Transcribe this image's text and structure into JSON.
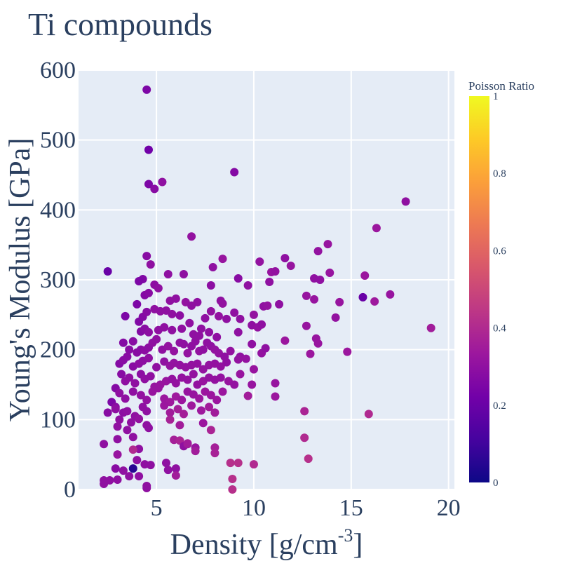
{
  "chart_data": {
    "type": "scatter",
    "title": "Ti compounds",
    "xlabel": "Density [g/cm",
    "xlabel_sup": "-3",
    "xlabel_end": "]",
    "ylabel": "Young's Modulus [GPa]",
    "xlim": [
      1,
      20.3
    ],
    "ylim": [
      0,
      600
    ],
    "xticks": [
      5,
      10,
      15,
      20
    ],
    "yticks": [
      0,
      100,
      200,
      300,
      400,
      500,
      600
    ],
    "grid": true,
    "colorbar": {
      "title": "Poisson Ratio",
      "range": [
        0,
        1
      ],
      "ticks": [
        0,
        0.2,
        0.4,
        0.6,
        0.8,
        1
      ],
      "tick_labels": [
        "0",
        "0.2",
        "0.4",
        "0.6",
        "0.8",
        "1"
      ]
    },
    "colors": {
      "plot_bg": "#e5ecf6",
      "grid": "#ffffff",
      "text": "#2a3f5f",
      "colorscale": [
        "#0d0887",
        "#46039f",
        "#7201a8",
        "#9c179e",
        "#bd3786",
        "#d8576b",
        "#ed7953",
        "#fb9f3a",
        "#fdca26",
        "#f0f921"
      ]
    },
    "points": [
      [
        4.5,
        572,
        0.25
      ],
      [
        4.6,
        486,
        0.22
      ],
      [
        4.6,
        437,
        0.25
      ],
      [
        4.9,
        430,
        0.28
      ],
      [
        5.3,
        440,
        0.3
      ],
      [
        9,
        454,
        0.27
      ],
      [
        2.5,
        312,
        0.2
      ],
      [
        17.8,
        412,
        0.3
      ],
      [
        16.3,
        374,
        0.33
      ],
      [
        13.8,
        351,
        0.32
      ],
      [
        6.8,
        362,
        0.31
      ],
      [
        4.5,
        334,
        0.28
      ],
      [
        4.7,
        322,
        0.3
      ],
      [
        4.3,
        301,
        0.26
      ],
      [
        4.1,
        298,
        0.25
      ],
      [
        5.6,
        308,
        0.3
      ],
      [
        6.4,
        308,
        0.3
      ],
      [
        7.9,
        318,
        0.3
      ],
      [
        8.4,
        330,
        0.32
      ],
      [
        10.3,
        326,
        0.31
      ],
      [
        10.9,
        311,
        0.32
      ],
      [
        11.1,
        312,
        0.31
      ],
      [
        11.6,
        331,
        0.3
      ],
      [
        11.9,
        320,
        0.32
      ],
      [
        13.3,
        341,
        0.31
      ],
      [
        13.9,
        310,
        0.32
      ],
      [
        13.1,
        302,
        0.3
      ],
      [
        13.4,
        300,
        0.3
      ],
      [
        15.7,
        306,
        0.33
      ],
      [
        10.8,
        297,
        0.3
      ],
      [
        9.2,
        302,
        0.28
      ],
      [
        9.7,
        292,
        0.3
      ],
      [
        7.8,
        292,
        0.29
      ],
      [
        4.0,
        265,
        0.25
      ],
      [
        4.4,
        278,
        0.27
      ],
      [
        4.6,
        281,
        0.28
      ],
      [
        4.9,
        293,
        0.29
      ],
      [
        5.1,
        288,
        0.3
      ],
      [
        5.7,
        270,
        0.3
      ],
      [
        6.0,
        273,
        0.3
      ],
      [
        6.5,
        268,
        0.31
      ],
      [
        6.8,
        263,
        0.3
      ],
      [
        7.1,
        268,
        0.3
      ],
      [
        8.3,
        270,
        0.3
      ],
      [
        8.4,
        266,
        0.31
      ],
      [
        9.0,
        253,
        0.3
      ],
      [
        10.0,
        250,
        0.31
      ],
      [
        10.5,
        262,
        0.3
      ],
      [
        10.7,
        263,
        0.31
      ],
      [
        11.3,
        265,
        0.3
      ],
      [
        12.7,
        277,
        0.32
      ],
      [
        13.1,
        272,
        0.32
      ],
      [
        14.4,
        268,
        0.32
      ],
      [
        15.6,
        275,
        0.2
      ],
      [
        16.2,
        269,
        0.34
      ],
      [
        17.0,
        279,
        0.32
      ],
      [
        3.4,
        248,
        0.25
      ],
      [
        4.1,
        240,
        0.26
      ],
      [
        4.3,
        247,
        0.27
      ],
      [
        4.5,
        254,
        0.28
      ],
      [
        4.9,
        258,
        0.3
      ],
      [
        5.2,
        255,
        0.3
      ],
      [
        5.5,
        256,
        0.3
      ],
      [
        5.8,
        251,
        0.3
      ],
      [
        6.2,
        249,
        0.29
      ],
      [
        6.7,
        238,
        0.3
      ],
      [
        7.3,
        230,
        0.3
      ],
      [
        7.5,
        245,
        0.3
      ],
      [
        7.8,
        255,
        0.31
      ],
      [
        8.2,
        248,
        0.31
      ],
      [
        8.6,
        244,
        0.3
      ],
      [
        9.3,
        244,
        0.3
      ],
      [
        9.9,
        235,
        0.3
      ],
      [
        10.2,
        232,
        0.31
      ],
      [
        10.4,
        236,
        0.3
      ],
      [
        12.7,
        234,
        0.32
      ],
      [
        14.2,
        246,
        0.31
      ],
      [
        19.1,
        231,
        0.35
      ],
      [
        4.2,
        226,
        0.27
      ],
      [
        4.4,
        230,
        0.28
      ],
      [
        4.6,
        225,
        0.29
      ],
      [
        5.1,
        228,
        0.3
      ],
      [
        5.4,
        232,
        0.3
      ],
      [
        5.8,
        228,
        0.3
      ],
      [
        6.3,
        230,
        0.3
      ],
      [
        6.9,
        222,
        0.3
      ],
      [
        7.2,
        220,
        0.3
      ],
      [
        7.7,
        225,
        0.3
      ],
      [
        8.1,
        218,
        0.3
      ],
      [
        9.2,
        225,
        0.3
      ],
      [
        11.6,
        213,
        0.33
      ],
      [
        13.2,
        216,
        0.32
      ],
      [
        13.3,
        209,
        0.32
      ],
      [
        3.3,
        210,
        0.27
      ],
      [
        3.6,
        200,
        0.28
      ],
      [
        3.8,
        212,
        0.28
      ],
      [
        4.0,
        196,
        0.28
      ],
      [
        4.2,
        200,
        0.28
      ],
      [
        4.4,
        199,
        0.29
      ],
      [
        4.6,
        203,
        0.29
      ],
      [
        4.8,
        210,
        0.3
      ],
      [
        5.0,
        215,
        0.3
      ],
      [
        5.3,
        200,
        0.3
      ],
      [
        5.6,
        205,
        0.31
      ],
      [
        5.9,
        198,
        0.31
      ],
      [
        6.2,
        210,
        0.3
      ],
      [
        6.4,
        208,
        0.3
      ],
      [
        6.6,
        195,
        0.31
      ],
      [
        6.8,
        205,
        0.3
      ],
      [
        7.0,
        212,
        0.3
      ],
      [
        7.2,
        198,
        0.31
      ],
      [
        7.4,
        200,
        0.3
      ],
      [
        7.6,
        210,
        0.3
      ],
      [
        7.8,
        205,
        0.3
      ],
      [
        8.0,
        200,
        0.31
      ],
      [
        8.2,
        195,
        0.31
      ],
      [
        8.5,
        190,
        0.3
      ],
      [
        8.8,
        198,
        0.31
      ],
      [
        9.3,
        190,
        0.3
      ],
      [
        9.6,
        187,
        0.31
      ],
      [
        9.9,
        208,
        0.3
      ],
      [
        10.4,
        195,
        0.31
      ],
      [
        10.6,
        202,
        0.3
      ],
      [
        12.9,
        194,
        0.33
      ],
      [
        14.8,
        197,
        0.33
      ],
      [
        3.1,
        180,
        0.27
      ],
      [
        3.3,
        185,
        0.28
      ],
      [
        3.5,
        190,
        0.28
      ],
      [
        3.8,
        176,
        0.28
      ],
      [
        4.1,
        180,
        0.29
      ],
      [
        4.3,
        184,
        0.29
      ],
      [
        4.6,
        188,
        0.3
      ],
      [
        5.0,
        175,
        0.3
      ],
      [
        5.4,
        183,
        0.3
      ],
      [
        5.7,
        177,
        0.31
      ],
      [
        5.9,
        181,
        0.31
      ],
      [
        6.2,
        178,
        0.31
      ],
      [
        6.5,
        175,
        0.31
      ],
      [
        6.8,
        178,
        0.31
      ],
      [
        7.1,
        180,
        0.31
      ],
      [
        7.4,
        172,
        0.31
      ],
      [
        7.7,
        178,
        0.31
      ],
      [
        8.0,
        180,
        0.31
      ],
      [
        8.3,
        176,
        0.31
      ],
      [
        8.6,
        182,
        0.3
      ],
      [
        9.2,
        186,
        0.31
      ],
      [
        10.0,
        172,
        0.32
      ],
      [
        3.2,
        165,
        0.28
      ],
      [
        3.4,
        155,
        0.3
      ],
      [
        3.6,
        160,
        0.3
      ],
      [
        3.9,
        152,
        0.3
      ],
      [
        4.2,
        165,
        0.29
      ],
      [
        4.4,
        158,
        0.3
      ],
      [
        4.7,
        162,
        0.3
      ],
      [
        4.9,
        147,
        0.32
      ],
      [
        5.2,
        150,
        0.32
      ],
      [
        5.5,
        155,
        0.32
      ],
      [
        5.8,
        158,
        0.31
      ],
      [
        6.0,
        152,
        0.31
      ],
      [
        6.3,
        160,
        0.31
      ],
      [
        6.6,
        157,
        0.31
      ],
      [
        6.9,
        165,
        0.31
      ],
      [
        7.1,
        150,
        0.31
      ],
      [
        7.4,
        155,
        0.32
      ],
      [
        7.7,
        160,
        0.31
      ],
      [
        8.0,
        157,
        0.31
      ],
      [
        8.3,
        160,
        0.31
      ],
      [
        8.7,
        155,
        0.32
      ],
      [
        9.0,
        150,
        0.31
      ],
      [
        9.3,
        165,
        0.32
      ],
      [
        9.9,
        150,
        0.32
      ],
      [
        11.1,
        152,
        0.32
      ],
      [
        2.9,
        145,
        0.27
      ],
      [
        3.1,
        138,
        0.3
      ],
      [
        3.4,
        130,
        0.3
      ],
      [
        3.8,
        140,
        0.3
      ],
      [
        4.2,
        135,
        0.31
      ],
      [
        4.5,
        128,
        0.31
      ],
      [
        4.8,
        140,
        0.32
      ],
      [
        5.1,
        145,
        0.32
      ],
      [
        5.4,
        130,
        0.33
      ],
      [
        5.7,
        125,
        0.34
      ],
      [
        6.0,
        133,
        0.34
      ],
      [
        6.3,
        128,
        0.33
      ],
      [
        6.6,
        140,
        0.32
      ],
      [
        6.9,
        136,
        0.32
      ],
      [
        7.2,
        130,
        0.33
      ],
      [
        7.5,
        140,
        0.33
      ],
      [
        7.8,
        135,
        0.33
      ],
      [
        8.1,
        128,
        0.33
      ],
      [
        8.4,
        140,
        0.33
      ],
      [
        9.7,
        134,
        0.35
      ],
      [
        11.1,
        133,
        0.33
      ],
      [
        2.7,
        125,
        0.25
      ],
      [
        2.9,
        118,
        0.28
      ],
      [
        3.3,
        110,
        0.29
      ],
      [
        3.5,
        112,
        0.3
      ],
      [
        3.9,
        105,
        0.3
      ],
      [
        4.3,
        118,
        0.3
      ],
      [
        4.5,
        112,
        0.3
      ],
      [
        5.4,
        120,
        0.33
      ],
      [
        5.7,
        110,
        0.35
      ],
      [
        6.1,
        115,
        0.36
      ],
      [
        6.4,
        108,
        0.36
      ],
      [
        6.8,
        120,
        0.34
      ],
      [
        7.3,
        113,
        0.34
      ],
      [
        7.7,
        118,
        0.35
      ],
      [
        8.0,
        110,
        0.35
      ],
      [
        2.5,
        110,
        0.28
      ],
      [
        2.9,
        115,
        0.3
      ],
      [
        3.1,
        100,
        0.3
      ],
      [
        3.7,
        96,
        0.3
      ],
      [
        4.1,
        101,
        0.31
      ],
      [
        4.5,
        92,
        0.3
      ],
      [
        5.7,
        100,
        0.37
      ],
      [
        6.2,
        92,
        0.35
      ],
      [
        7.4,
        95,
        0.33
      ],
      [
        12.6,
        112,
        0.38
      ],
      [
        15.9,
        108,
        0.4
      ],
      [
        3.0,
        90,
        0.3
      ],
      [
        3.5,
        85,
        0.3
      ],
      [
        4.6,
        88,
        0.3
      ],
      [
        5.9,
        71,
        0.36
      ],
      [
        6.2,
        70,
        0.38
      ],
      [
        6.6,
        66,
        0.37
      ],
      [
        7.8,
        85,
        0.38
      ],
      [
        12.6,
        74,
        0.4
      ],
      [
        2.3,
        65,
        0.3
      ],
      [
        3.0,
        72,
        0.3
      ],
      [
        3.8,
        75,
        0.3
      ],
      [
        4.1,
        58,
        0.3
      ],
      [
        6.4,
        62,
        0.3
      ],
      [
        7.0,
        60,
        0.32
      ],
      [
        8.0,
        60,
        0.36
      ],
      [
        3.8,
        57,
        0.4
      ],
      [
        3.0,
        50,
        0.32
      ],
      [
        4.0,
        42,
        0.3
      ],
      [
        5.5,
        38,
        0.3
      ],
      [
        6.0,
        30,
        0.3
      ],
      [
        6.6,
        65,
        0.35
      ],
      [
        7.0,
        55,
        0.35
      ],
      [
        8.0,
        52,
        0.37
      ],
      [
        8.8,
        38,
        0.42
      ],
      [
        9.2,
        38,
        0.42
      ],
      [
        10.0,
        36,
        0.4
      ],
      [
        12.8,
        44,
        0.42
      ],
      [
        2.9,
        30,
        0.28
      ],
      [
        3.3,
        27,
        0.3
      ],
      [
        3.8,
        30,
        0.05
      ],
      [
        4.4,
        36,
        0.3
      ],
      [
        4.7,
        35,
        0.3
      ],
      [
        4.1,
        19,
        0.3
      ],
      [
        5.6,
        28,
        0.3
      ],
      [
        6.0,
        20,
        0.35
      ],
      [
        8.9,
        15,
        0.42
      ],
      [
        2.3,
        13,
        0.3
      ],
      [
        2.6,
        13,
        0.3
      ],
      [
        2.3,
        8,
        0.3
      ],
      [
        3.0,
        14,
        0.3
      ],
      [
        3.6,
        19,
        0.3
      ],
      [
        4.5,
        5,
        0.3
      ],
      [
        4.5,
        2,
        0.3
      ],
      [
        8.9,
        0,
        0.42
      ]
    ]
  }
}
